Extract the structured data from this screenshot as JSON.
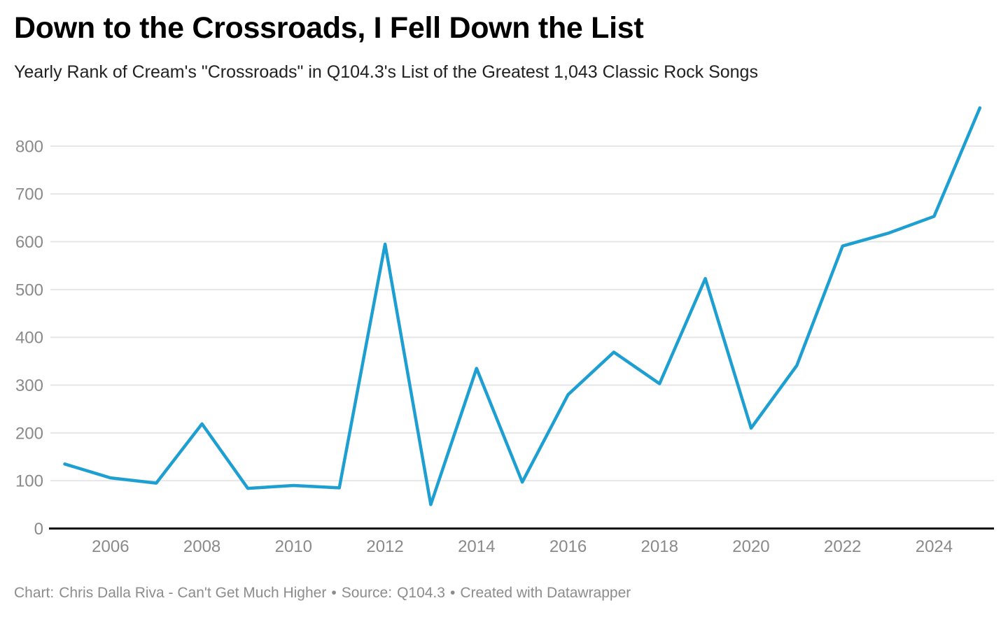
{
  "header": {
    "title": "Down to the Crossroads, I Fell Down the List",
    "subtitle": "Yearly Rank of Cream's \"Crossroads\" in Q104.3's List of the Greatest 1,043 Classic Rock Songs"
  },
  "chart_data": {
    "type": "line",
    "title": "Down to the Crossroads, I Fell Down the List",
    "subtitle": "Yearly Rank of Cream's \"Crossroads\" in Q104.3's List of the Greatest 1,043 Classic Rock Songs",
    "series_name": "Yearly Rank",
    "x": [
      2005,
      2006,
      2007,
      2008,
      2009,
      2010,
      2011,
      2012,
      2013,
      2014,
      2015,
      2016,
      2017,
      2018,
      2019,
      2020,
      2021,
      2022,
      2023,
      2024,
      2025
    ],
    "values": [
      135,
      106,
      95,
      219,
      84,
      90,
      85,
      595,
      50,
      335,
      97,
      280,
      369,
      303,
      523,
      210,
      341,
      591,
      618,
      653,
      880
    ],
    "x_ticks": [
      2006,
      2008,
      2010,
      2012,
      2014,
      2016,
      2018,
      2020,
      2022,
      2024
    ],
    "y_ticks": [
      0,
      100,
      200,
      300,
      400,
      500,
      600,
      700,
      800
    ],
    "xlim": [
      2005,
      2025
    ],
    "ylim": [
      0,
      883
    ],
    "grid": "horizontal",
    "legend": "none",
    "line_color": "#1e9fd2",
    "gridline_color": "#e6e6e6",
    "axis_color": "#111111",
    "tick_label_color": "#8a8a8a"
  },
  "footer": {
    "text": "Chart: Chris Dalla Riva - Can't Get Much Higher • Source: Q104.3 • Created with Datawrapper",
    "chart_label": "Chart:",
    "chart_credit": "Chris Dalla Riva - Can't Get Much Higher",
    "separator": "•",
    "source_label": "Source:",
    "source_value": "Q104.3",
    "created_with": "Created with Datawrapper"
  }
}
